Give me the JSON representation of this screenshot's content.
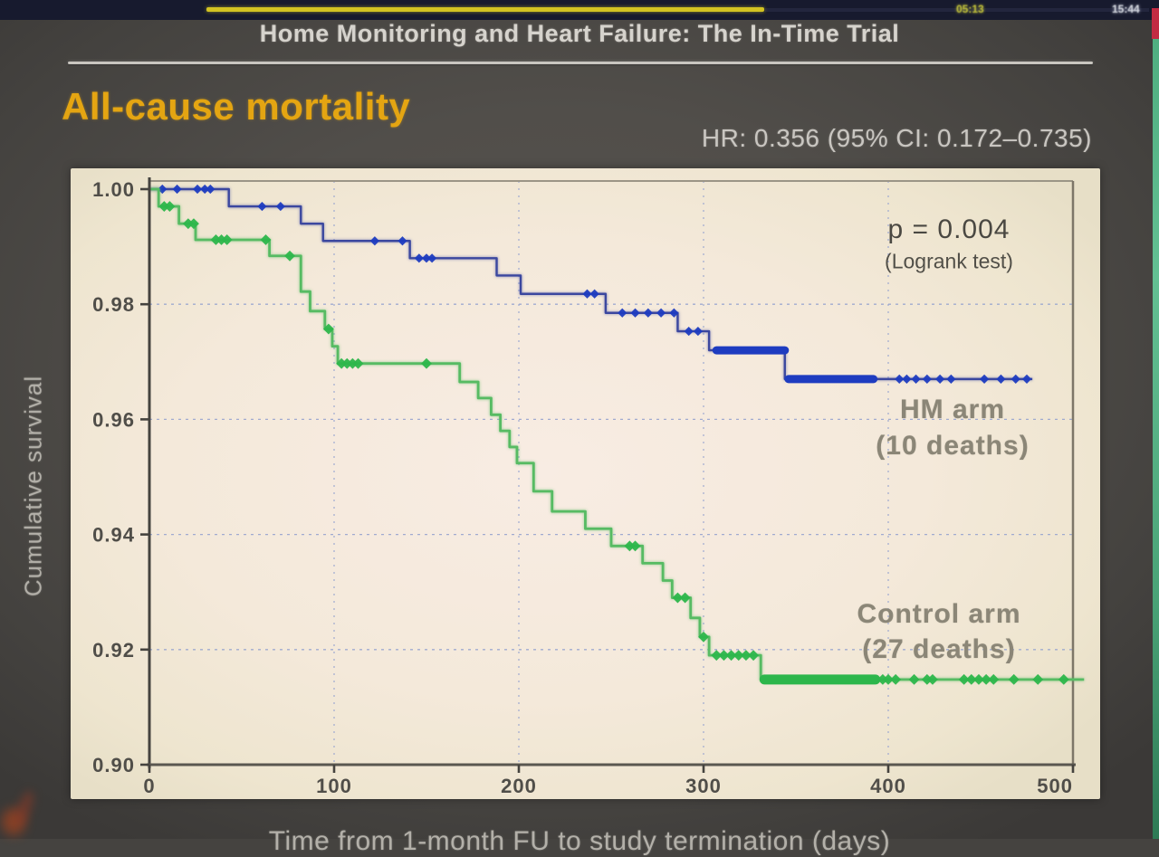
{
  "player_bar": {
    "elapsed": "05:13",
    "clock": "15:44"
  },
  "slide": {
    "title": "Home Monitoring and Heart Failure: The In-Time Trial",
    "heading": "All-cause mortality",
    "hr_text": "HR: 0.356  (95% CI: 0.172–0.735)"
  },
  "chart_data": {
    "type": "line",
    "subtype": "kaplan-meier-step",
    "title": "All-cause mortality",
    "xlabel": "Time from 1-month FU to study termination (days)",
    "ylabel": "Cumulative survival",
    "xlim": [
      0,
      500
    ],
    "ylim": [
      0.9,
      1.0
    ],
    "xticks": [
      0,
      100,
      200,
      300,
      400,
      500
    ],
    "yticks": [
      {
        "label": "1.00",
        "v": 1.0
      },
      {
        "label": "0.98",
        "v": 0.98
      },
      {
        "label": "0.96",
        "v": 0.96
      },
      {
        "label": "0.94",
        "v": 0.94
      },
      {
        "label": "0.92",
        "v": 0.92
      },
      {
        "label": "0.90",
        "v": 0.9
      }
    ],
    "grid": "dashed-blue",
    "legend_position": "labels-inside-right",
    "annotations": {
      "p_value": "p = 0.004",
      "test": "(Logrank test)"
    },
    "series": [
      {
        "name": "HM arm",
        "deaths_label": "(10 deaths)",
        "n_deaths": 10,
        "color": "#3b479f",
        "censor_color": "#1e3cc0",
        "steps": [
          [
            0,
            1.0
          ],
          [
            43,
            0.997
          ],
          [
            82,
            0.994
          ],
          [
            94,
            0.991
          ],
          [
            141,
            0.988
          ],
          [
            188,
            0.985
          ],
          [
            201,
            0.9818
          ],
          [
            247,
            0.9785
          ],
          [
            286,
            0.9753
          ],
          [
            303,
            0.972
          ],
          [
            344,
            0.967
          ]
        ],
        "end_day": 478,
        "censor_days": [
          7,
          15,
          26,
          30,
          33,
          61,
          71,
          122,
          137,
          146,
          150,
          153,
          237,
          241,
          256,
          263,
          270,
          277,
          284,
          292,
          297,
          406,
          410,
          415,
          421,
          428,
          434,
          452,
          461,
          469,
          475
        ],
        "censor_bands": [
          [
            307,
            344
          ],
          [
            346,
            392
          ]
        ]
      },
      {
        "name": "Control arm",
        "deaths_label": "(27 deaths)",
        "n_deaths": 27,
        "color": "#57bb63",
        "censor_color": "#2db64b",
        "steps": [
          [
            0,
            1.0
          ],
          [
            5,
            0.997
          ],
          [
            16,
            0.994
          ],
          [
            25,
            0.9912
          ],
          [
            65,
            0.9884
          ],
          [
            82,
            0.9822
          ],
          [
            87,
            0.9788
          ],
          [
            95,
            0.9757
          ],
          [
            99,
            0.9727
          ],
          [
            102,
            0.9697
          ],
          [
            168,
            0.9665
          ],
          [
            178,
            0.9637
          ],
          [
            185,
            0.9608
          ],
          [
            190,
            0.958
          ],
          [
            195,
            0.9552
          ],
          [
            199,
            0.9524
          ],
          [
            208,
            0.9475
          ],
          [
            218,
            0.944
          ],
          [
            236,
            0.941
          ],
          [
            250,
            0.938
          ],
          [
            267,
            0.935
          ],
          [
            278,
            0.932
          ],
          [
            283,
            0.929
          ],
          [
            293,
            0.9255
          ],
          [
            298,
            0.9222
          ],
          [
            303,
            0.919
          ],
          [
            331,
            0.9148
          ]
        ],
        "end_day": 506,
        "censor_days": [
          8,
          11,
          21,
          24,
          36,
          39,
          42,
          63,
          76,
          97,
          104,
          107,
          110,
          113,
          150,
          260,
          263,
          286,
          290,
          300,
          307,
          311,
          315,
          319,
          323,
          327,
          397,
          400,
          404,
          414,
          421,
          424,
          441,
          445,
          449,
          453,
          457,
          468,
          481,
          495
        ],
        "censor_bands": [
          [
            333,
            393
          ]
        ]
      }
    ]
  }
}
